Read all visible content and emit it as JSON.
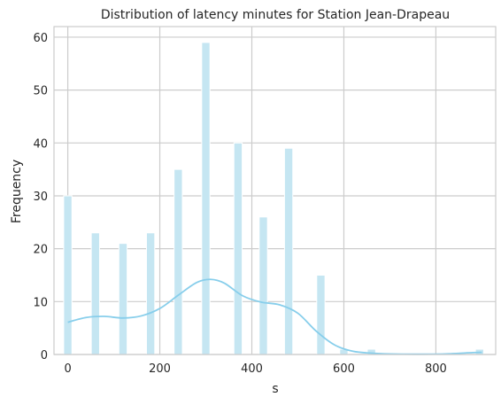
{
  "chart_data": {
    "type": "bar",
    "title": "Distribution of latency minutes for Station Jean-Drapeau",
    "xlabel": "s",
    "ylabel": "Frequency",
    "xlim": [
      -30,
      930
    ],
    "ylim": [
      0,
      62
    ],
    "xticks": [
      0,
      200,
      400,
      600,
      800
    ],
    "yticks": [
      0,
      10,
      20,
      30,
      40,
      50,
      60
    ],
    "grid": true,
    "bin_width": 18,
    "bars": [
      {
        "x": 0,
        "count": 30
      },
      {
        "x": 60,
        "count": 23
      },
      {
        "x": 120,
        "count": 21
      },
      {
        "x": 180,
        "count": 23
      },
      {
        "x": 240,
        "count": 35
      },
      {
        "x": 300,
        "count": 59
      },
      {
        "x": 370,
        "count": 40
      },
      {
        "x": 425,
        "count": 26
      },
      {
        "x": 480,
        "count": 39
      },
      {
        "x": 550,
        "count": 15
      },
      {
        "x": 600,
        "count": 1
      },
      {
        "x": 660,
        "count": 1
      },
      {
        "x": 895,
        "count": 1
      }
    ],
    "kde": {
      "x": [
        0,
        40,
        80,
        120,
        160,
        200,
        240,
        280,
        310,
        340,
        380,
        420,
        460,
        500,
        540,
        580,
        620,
        660,
        700,
        760,
        820,
        880,
        900
      ],
      "y": [
        6.1,
        7.0,
        7.2,
        6.9,
        7.3,
        8.7,
        11.2,
        13.6,
        14.2,
        13.5,
        11.1,
        9.9,
        9.4,
        7.8,
        4.4,
        1.8,
        0.6,
        0.25,
        0.1,
        0.05,
        0.1,
        0.35,
        0.4
      ]
    },
    "colors": {
      "bar_fill": "#c5e6f2",
      "bar_stroke": "#ffffff",
      "kde_line": "#87ceeb",
      "grid": "#cccccc",
      "frame": "#cccccc",
      "text": "#262626"
    }
  }
}
